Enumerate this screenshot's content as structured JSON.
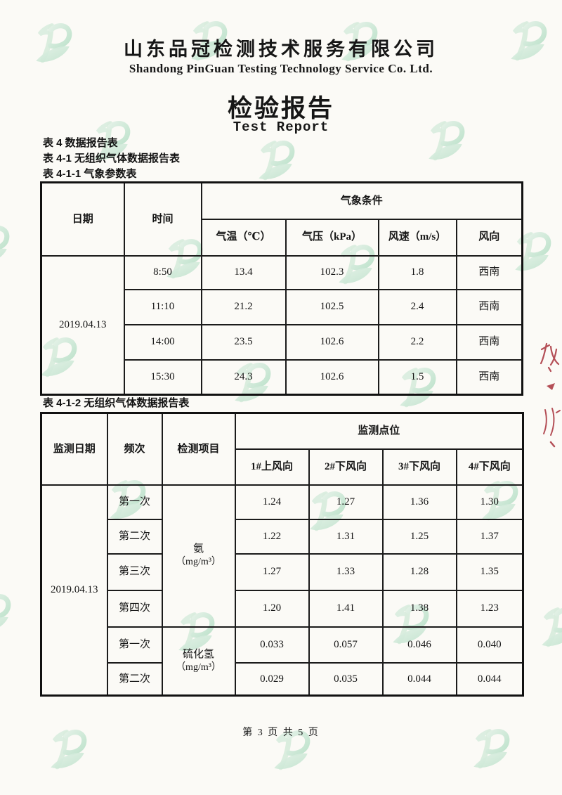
{
  "header": {
    "company_cn": "山东品冠检测技术服务有限公司",
    "company_en": "Shandong PinGuan Testing Technology Service Co. Ltd.",
    "report_title_cn": "检验报告",
    "report_title_en": "Test Report"
  },
  "section_labels": {
    "table_4": "表 4 数据报告表",
    "table_4_1": "表 4-1 无组织气体数据报告表",
    "table_4_1_1": "表 4-1-1 气象参数表",
    "table_4_1_2": "表 4-1-2 无组织气体数据报告表"
  },
  "weather_table": {
    "col_date": "日期",
    "col_time": "时间",
    "col_condition": "气象条件",
    "col_temp": "气温（℃）",
    "col_pressure": "气压（kPa）",
    "col_wind_speed": "风速（m/s）",
    "col_wind_dir": "风向",
    "date": "2019.04.13",
    "rows": [
      {
        "time": "8:50",
        "temp": "13.4",
        "pressure": "102.3",
        "wind_speed": "1.8",
        "wind_dir": "西南"
      },
      {
        "time": "11:10",
        "temp": "21.2",
        "pressure": "102.5",
        "wind_speed": "2.4",
        "wind_dir": "西南"
      },
      {
        "time": "14:00",
        "temp": "23.5",
        "pressure": "102.6",
        "wind_speed": "2.2",
        "wind_dir": "西南"
      },
      {
        "time": "15:30",
        "temp": "24.3",
        "pressure": "102.6",
        "wind_speed": "1.5",
        "wind_dir": "西南"
      }
    ]
  },
  "gas_table": {
    "col_date": "监测日期",
    "col_freq": "频次",
    "col_item": "检测项目",
    "col_points": "监测点位",
    "col_p1": "1#上风向",
    "col_p2": "2#下风向",
    "col_p3": "3#下风向",
    "col_p4": "4#下风向",
    "date": "2019.04.13",
    "items": [
      {
        "name": "氨",
        "unit": "（mg/m³）"
      },
      {
        "name": "硫化氢",
        "unit": "（mg/m³）"
      }
    ],
    "rows": [
      {
        "freq": "第一次",
        "p1": "1.24",
        "p2": "1.27",
        "p3": "1.36",
        "p4": "1.30"
      },
      {
        "freq": "第二次",
        "p1": "1.22",
        "p2": "1.31",
        "p3": "1.25",
        "p4": "1.37"
      },
      {
        "freq": "第三次",
        "p1": "1.27",
        "p2": "1.33",
        "p3": "1.28",
        "p4": "1.35"
      },
      {
        "freq": "第四次",
        "p1": "1.20",
        "p2": "1.41",
        "p3": "1.38",
        "p4": "1.23"
      },
      {
        "freq": "第一次",
        "p1": "0.033",
        "p2": "0.057",
        "p3": "0.046",
        "p4": "0.040"
      },
      {
        "freq": "第二次",
        "p1": "0.029",
        "p2": "0.035",
        "p3": "0.044",
        "p4": "0.044"
      }
    ]
  },
  "footer": {
    "page_text": "第 3 页 共 5 页"
  },
  "watermark": {
    "name": "pinguan-leaf-logo",
    "color_light": "#cfeada",
    "color_mid": "#8fd0ab",
    "color_leaf": "#86cba1"
  },
  "stamp": {
    "color": "#a8323c"
  }
}
